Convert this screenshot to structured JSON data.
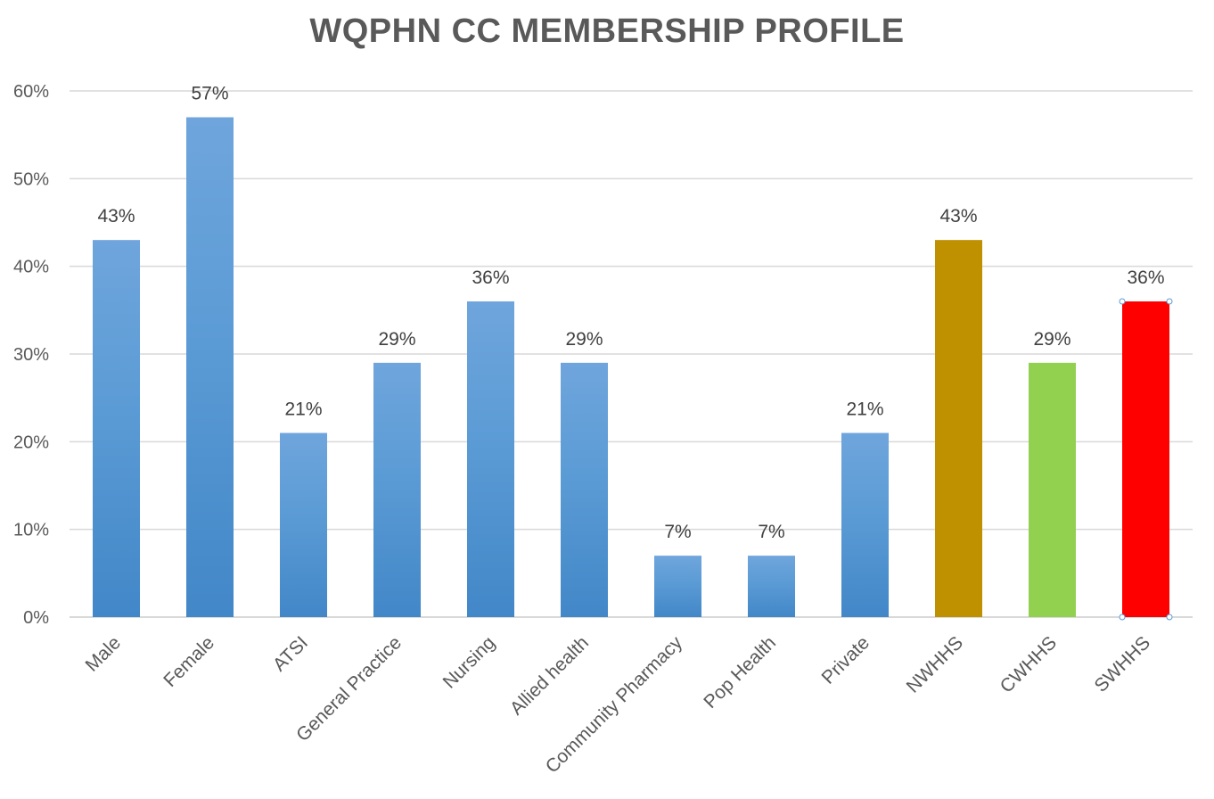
{
  "chart_data": {
    "type": "bar",
    "title": "WQPHN CC MEMBERSHIP PROFILE",
    "xlabel": "",
    "ylabel": "",
    "categories": [
      "Male",
      "Female",
      "ATSI",
      "General Practice",
      "Nursing",
      "Allied health",
      "Community Pharmacy",
      "Pop Health",
      "Private",
      "NWHHS",
      "CWHHS",
      "SWHHS"
    ],
    "values": [
      0.43,
      0.57,
      0.21,
      0.29,
      0.36,
      0.29,
      0.07,
      0.07,
      0.21,
      0.43,
      0.29,
      0.36
    ],
    "data_labels": [
      "43%",
      "57%",
      "21%",
      "29%",
      "36%",
      "29%",
      "7%",
      "7%",
      "21%",
      "43%",
      "29%",
      "36%"
    ],
    "bar_colors": [
      "#5b9bd5",
      "#5b9bd5",
      "#5b9bd5",
      "#5b9bd5",
      "#5b9bd5",
      "#5b9bd5",
      "#5b9bd5",
      "#5b9bd5",
      "#5b9bd5",
      "#bf9000",
      "#92d050",
      "#ff0000"
    ],
    "ylim": [
      0,
      0.6
    ],
    "yticks": [
      0,
      0.1,
      0.2,
      0.3,
      0.4,
      0.5,
      0.6
    ],
    "ytick_labels": [
      "0%",
      "10%",
      "20%",
      "30%",
      "40%",
      "50%",
      "60%"
    ],
    "grid": true,
    "legend": "none"
  }
}
